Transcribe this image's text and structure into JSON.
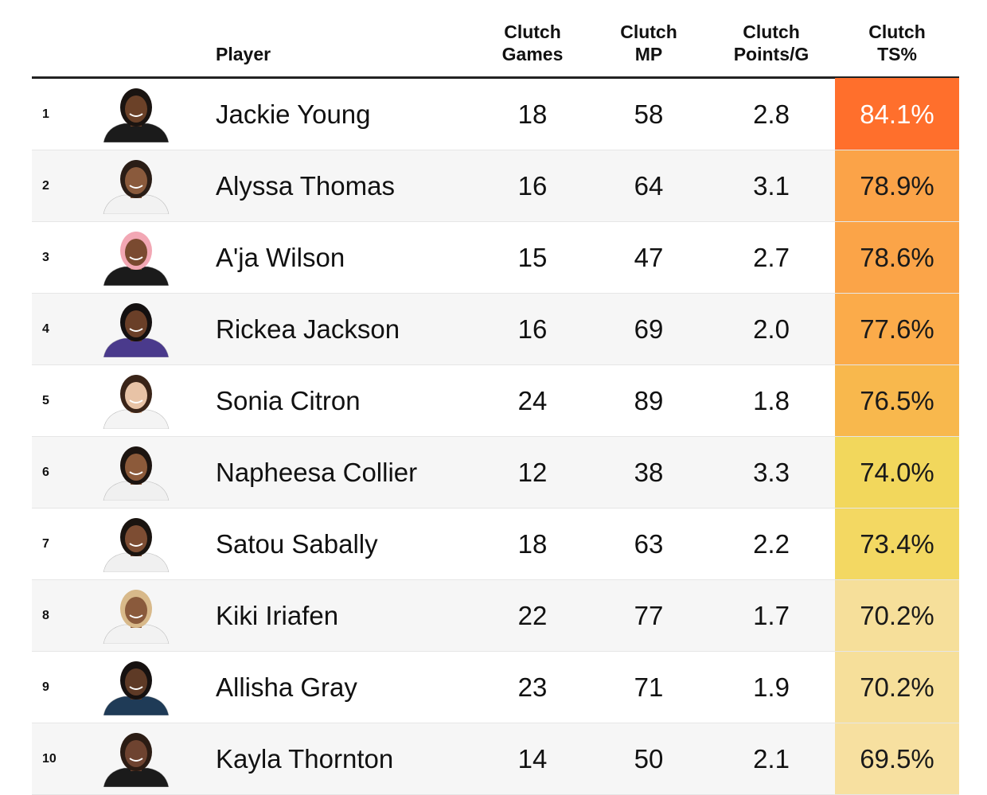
{
  "header": {
    "player": "Player",
    "games": [
      "Clutch",
      "Games"
    ],
    "mp": [
      "Clutch",
      "MP"
    ],
    "ppg": [
      "Clutch",
      "Points/G"
    ],
    "ts": [
      "Clutch",
      "TS%"
    ]
  },
  "rows": [
    {
      "rank": "1",
      "name": "Jackie Young",
      "games": "18",
      "mp": "58",
      "ppg": "2.8",
      "ts": "84.1%",
      "bg": "#ff6f2c",
      "fg": "#ffffff",
      "skin": "#6b4128",
      "hair": "#1a1411",
      "jersey": "#1b1b1b"
    },
    {
      "rank": "2",
      "name": "Alyssa Thomas",
      "games": "16",
      "mp": "64",
      "ppg": "3.1",
      "ts": "78.9%",
      "bg": "#fba348",
      "fg": "#1a1a1a",
      "skin": "#8a5a3c",
      "hair": "#2a1d16",
      "jersey": "#f2f2f2"
    },
    {
      "rank": "3",
      "name": "A'ja Wilson",
      "games": "15",
      "mp": "47",
      "ppg": "2.7",
      "ts": "78.6%",
      "bg": "#fba448",
      "fg": "#1a1a1a",
      "skin": "#7a4a30",
      "hair": "#f2a7b4",
      "jersey": "#1b1b1b"
    },
    {
      "rank": "4",
      "name": "Rickea Jackson",
      "games": "16",
      "mp": "69",
      "ppg": "2.0",
      "ts": "77.6%",
      "bg": "#fbab4a",
      "fg": "#1a1a1a",
      "skin": "#6a3f28",
      "hair": "#141010",
      "jersey": "#4a3a8c"
    },
    {
      "rank": "5",
      "name": "Sonia Citron",
      "games": "24",
      "mp": "89",
      "ppg": "1.8",
      "ts": "76.5%",
      "bg": "#f8b84d",
      "fg": "#1a1a1a",
      "skin": "#e8c3a6",
      "hair": "#3a2418",
      "jersey": "#f4f4f4"
    },
    {
      "rank": "6",
      "name": "Napheesa Collier",
      "games": "12",
      "mp": "38",
      "ppg": "3.3",
      "ts": "74.0%",
      "bg": "#f2d75c",
      "fg": "#1a1a1a",
      "skin": "#8c5a3a",
      "hair": "#1c1410",
      "jersey": "#f0f0f0"
    },
    {
      "rank": "7",
      "name": "Satou Sabally",
      "games": "18",
      "mp": "63",
      "ppg": "2.2",
      "ts": "73.4%",
      "bg": "#f3d862",
      "fg": "#1a1a1a",
      "skin": "#7d4d33",
      "hair": "#1a1410",
      "jersey": "#f0f0f0"
    },
    {
      "rank": "8",
      "name": "Kiki Iriafen",
      "games": "22",
      "mp": "77",
      "ppg": "1.7",
      "ts": "70.2%",
      "bg": "#f6df9a",
      "fg": "#1a1a1a",
      "skin": "#8a5a3c",
      "hair": "#d8b98a",
      "jersey": "#f2f2f2"
    },
    {
      "rank": "9",
      "name": "Allisha Gray",
      "games": "23",
      "mp": "71",
      "ppg": "1.9",
      "ts": "70.2%",
      "bg": "#f6df9a",
      "fg": "#1a1a1a",
      "skin": "#5e3a26",
      "hair": "#161110",
      "jersey": "#1f3b57"
    },
    {
      "rank": "10",
      "name": "Kayla Thornton",
      "games": "14",
      "mp": "50",
      "ppg": "2.1",
      "ts": "69.5%",
      "bg": "#f7e0a0",
      "fg": "#1a1a1a",
      "skin": "#6e4330",
      "hair": "#2b1c14",
      "jersey": "#1b1b1b"
    }
  ],
  "chart_data": {
    "type": "table",
    "columns": [
      "Player",
      "Clutch Games",
      "Clutch MP",
      "Clutch Points/G",
      "Clutch TS%"
    ],
    "rows": [
      [
        "Jackie Young",
        18,
        58,
        2.8,
        84.1
      ],
      [
        "Alyssa Thomas",
        16,
        64,
        3.1,
        78.9
      ],
      [
        "A'ja Wilson",
        15,
        47,
        2.7,
        78.6
      ],
      [
        "Rickea Jackson",
        16,
        69,
        2.0,
        77.6
      ],
      [
        "Sonia Citron",
        24,
        89,
        1.8,
        76.5
      ],
      [
        "Napheesa Collier",
        12,
        38,
        3.3,
        74.0
      ],
      [
        "Satou Sabally",
        18,
        63,
        2.2,
        73.4
      ],
      [
        "Kiki Iriafen",
        22,
        77,
        1.7,
        70.2
      ],
      [
        "Allisha Gray",
        23,
        71,
        1.9,
        70.2
      ],
      [
        "Kayla Thornton",
        14,
        50,
        2.1,
        69.5
      ]
    ]
  }
}
